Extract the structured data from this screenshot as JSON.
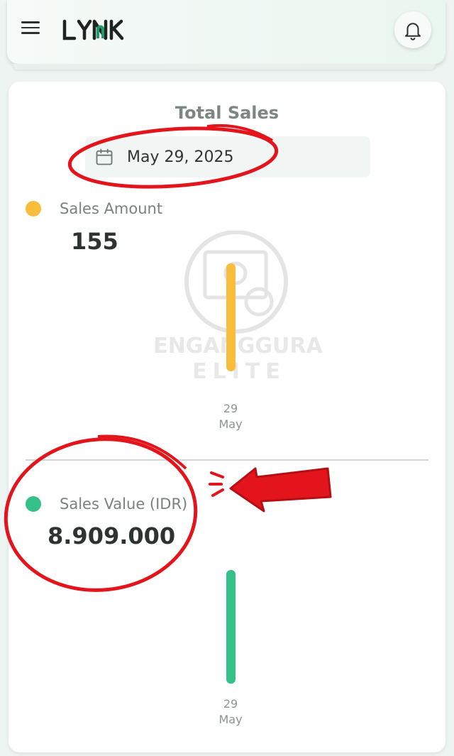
{
  "header": {
    "logo_text": "LYNK",
    "menu_icon": "hamburger-menu-icon",
    "bell_icon": "bell-icon"
  },
  "card": {
    "title": "Total Sales",
    "date": "May 29, 2025",
    "calendar_icon": "calendar-icon"
  },
  "sales_amount": {
    "label": "Sales Amount",
    "value": "155",
    "color": "#f9bd3c"
  },
  "sales_value": {
    "label": "Sales Value (IDR)",
    "value": "8.909.000",
    "color": "#35c08a"
  },
  "watermark": {
    "line1": "PENGANGGURAN",
    "line2": "ELITE"
  },
  "chart_data": [
    {
      "type": "bar",
      "categories": [
        "29 May"
      ],
      "values": [
        155
      ],
      "tick_day": "29",
      "tick_month": "May",
      "color": "#f9bd3c"
    },
    {
      "type": "bar",
      "categories": [
        "29 May"
      ],
      "values": [
        8909000
      ],
      "tick_day": "29",
      "tick_month": "May",
      "color": "#35c08a"
    }
  ]
}
